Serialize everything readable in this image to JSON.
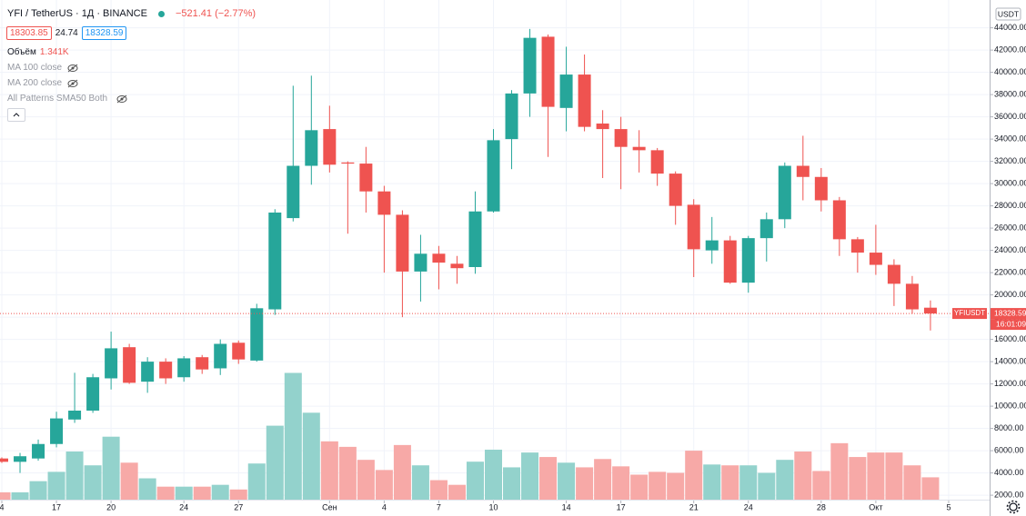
{
  "header": {
    "symbol": "YFI / TetherUS · 1Д · BINANCE",
    "change": "−521.41 (−2.77%)",
    "bid": "18303.85",
    "spread": "24.74",
    "ask": "18328.59",
    "volume_label": "Объём",
    "volume_value": "1.341K",
    "indicators": [
      "MA 100 close",
      "MA 200 close",
      "All Patterns SMA50 Both"
    ]
  },
  "chart_data": {
    "type": "candlestick",
    "currency": "USDT",
    "symbol_label": "YFIUSDT",
    "countdown": "16:01:09",
    "up_color": "#26a69a",
    "down_color": "#ef5350",
    "volume_up_color": "#93d2cc",
    "volume_down_color": "#f7a9a7",
    "open": [
      5300,
      5000,
      5300,
      6600,
      8800,
      9600,
      12500,
      15300,
      12200,
      14000,
      12600,
      14400,
      13400,
      15700,
      14100,
      18700,
      26900,
      31600,
      34900,
      31900,
      31800,
      29300,
      27200,
      22100,
      23700,
      22800,
      22500,
      27500,
      34000,
      38100,
      43200,
      36800,
      39800,
      35400,
      34900,
      33300,
      33000,
      30900,
      28100,
      24000,
      24900,
      21100,
      25100,
      26800,
      31600,
      30600,
      28500,
      25000,
      23800,
      22700,
      21000,
      18850
    ],
    "high": [
      5400,
      5800,
      7000,
      9500,
      13000,
      12900,
      16700,
      15600,
      14400,
      14300,
      14500,
      14600,
      16000,
      15900,
      19200,
      27700,
      38800,
      39700,
      37000,
      32000,
      33300,
      29800,
      27600,
      25400,
      24400,
      23500,
      29300,
      34900,
      38400,
      43900,
      43400,
      42300,
      41600,
      36600,
      36000,
      34800,
      33200,
      31100,
      28600,
      27000,
      25300,
      25300,
      27400,
      31900,
      34300,
      31400,
      28800,
      25200,
      26300,
      23200,
      21700,
      19500
    ],
    "low": [
      4900,
      4000,
      5100,
      6300,
      8500,
      9400,
      11500,
      12000,
      11200,
      12000,
      12200,
      12900,
      12800,
      13800,
      14000,
      18200,
      26600,
      29900,
      31000,
      25500,
      27400,
      22000,
      18000,
      19400,
      20500,
      21000,
      21900,
      27400,
      31300,
      36000,
      32400,
      34700,
      34700,
      30500,
      29500,
      31000,
      29800,
      26300,
      21600,
      22800,
      21000,
      20200,
      23000,
      26000,
      28500,
      27500,
      23500,
      22000,
      21800,
      19000,
      18300,
      16800
    ],
    "close": [
      5000,
      5500,
      6600,
      8900,
      9600,
      12600,
      15200,
      12100,
      14000,
      12500,
      14300,
      13300,
      15600,
      14200,
      18800,
      27400,
      31600,
      34800,
      31700,
      31800,
      29300,
      27200,
      22100,
      23700,
      22900,
      22400,
      27500,
      33900,
      38100,
      43100,
      36900,
      39800,
      35100,
      34900,
      33300,
      33000,
      30900,
      28000,
      24100,
      24900,
      21100,
      25100,
      26800,
      31600,
      30600,
      28500,
      25000,
      23800,
      22700,
      21000,
      18700,
      18328.59
    ],
    "volume": [
      0.44,
      0.44,
      1.11,
      1.67,
      2.89,
      2.06,
      3.78,
      2.22,
      1.28,
      0.78,
      0.78,
      0.78,
      0.89,
      0.61,
      2.17,
      4.44,
      7.61,
      5.22,
      3.5,
      3.17,
      2.39,
      1.78,
      3.28,
      2.06,
      1.17,
      0.89,
      2.28,
      3.0,
      1.94,
      2.83,
      2.56,
      2.22,
      1.94,
      2.44,
      2.0,
      1.5,
      1.67,
      1.61,
      2.94,
      2.11,
      2.06,
      2.06,
      1.61,
      2.39,
      2.89,
      1.72,
      3.39,
      2.56,
      2.83,
      2.83,
      2.06,
      1.341
    ],
    "last_price": 18328.59,
    "xlim": [
      -0.1,
      54.25
    ],
    "xticks": [
      {
        "value": 0,
        "label": "4"
      },
      {
        "value": 3,
        "label": "17"
      },
      {
        "value": 6,
        "label": "20"
      },
      {
        "value": 10,
        "label": "24"
      },
      {
        "value": 13,
        "label": "27"
      },
      {
        "value": 18,
        "label": "Сен"
      },
      {
        "value": 21,
        "label": "4"
      },
      {
        "value": 24,
        "label": "7"
      },
      {
        "value": 27,
        "label": "10"
      },
      {
        "value": 31,
        "label": "14"
      },
      {
        "value": 34,
        "label": "17"
      },
      {
        "value": 38,
        "label": "21"
      },
      {
        "value": 41,
        "label": "24"
      },
      {
        "value": 45,
        "label": "28"
      },
      {
        "value": 48,
        "label": "Окт"
      },
      {
        "value": 52,
        "label": "5"
      }
    ],
    "ylim": [
      1600,
      46500
    ],
    "volume_ylim": [
      0,
      30
    ],
    "yticks": [
      {
        "value": 2000,
        "label": "2000.00"
      },
      {
        "value": 4000,
        "label": "4000.00"
      },
      {
        "value": 6000,
        "label": "6000.00"
      },
      {
        "value": 8000,
        "label": "8000.00"
      },
      {
        "value": 10000,
        "label": "10000.00"
      },
      {
        "value": 12000,
        "label": "12000.00"
      },
      {
        "value": 14000,
        "label": "14000.00"
      },
      {
        "value": 16000,
        "label": "16000.00"
      },
      {
        "value": 18000,
        "label": "18000.00"
      },
      {
        "value": 20000,
        "label": "20000.00"
      },
      {
        "value": 22000,
        "label": "22000.00"
      },
      {
        "value": 24000,
        "label": "24000.00"
      },
      {
        "value": 26000,
        "label": "26000.00"
      },
      {
        "value": 28000,
        "label": "28000.00"
      },
      {
        "value": 30000,
        "label": "30000.00"
      },
      {
        "value": 32000,
        "label": "32000.00"
      },
      {
        "value": 34000,
        "label": "34000.00"
      },
      {
        "value": 36000,
        "label": "36000.00"
      },
      {
        "value": 38000,
        "label": "38000.00"
      },
      {
        "value": 40000,
        "label": "40000.00"
      },
      {
        "value": 42000,
        "label": "42000.00"
      },
      {
        "value": 44000,
        "label": "44000.00"
      }
    ],
    "grid": true
  }
}
